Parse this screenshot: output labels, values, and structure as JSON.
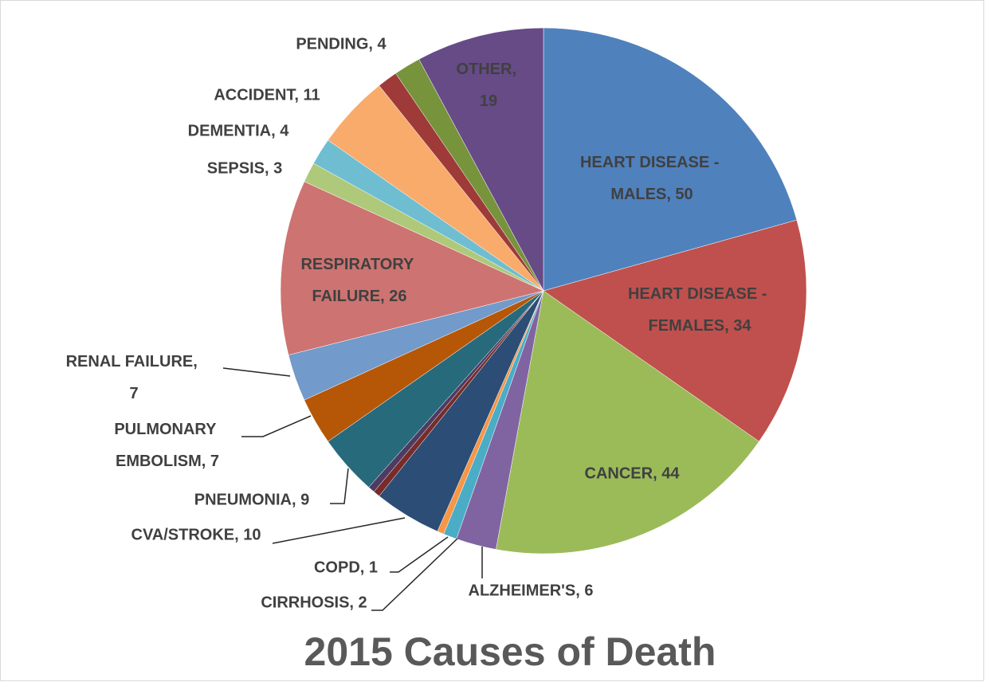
{
  "chart_data": {
    "type": "pie",
    "title": "2015 Causes of Death",
    "values": [
      50,
      34,
      44,
      6,
      2,
      1,
      10,
      1,
      1,
      9,
      7,
      7,
      26,
      3,
      4,
      11,
      3,
      4,
      19
    ],
    "value_labels": [
      "HEART DISEASE - MALES, 50",
      "HEART DISEASE - FEMALES, 34",
      "CANCER, 44",
      "ALZHEIMER'S, 6",
      "CIRRHOSIS, 2",
      "COPD, 1",
      "CVA/STROKE, 10",
      null,
      null,
      "PNEUMONIA, 9",
      "PULMONARY EMBOLISM, 7",
      "RENAL FAILURE, 7",
      "RESPIRATORY FAILURE, 26",
      "SEPSIS, 3",
      "DEMENTIA, 4",
      "ACCIDENT, 11",
      null,
      "PENDING, 4",
      "OTHER, 19"
    ],
    "colors": [
      "#4f81bd",
      "#c0504d",
      "#9bbb59",
      "#8064a2",
      "#4bacc6",
      "#f79646",
      "#2c4d75",
      "#772c2a",
      "#4d3b62",
      "#276a7c",
      "#b65708",
      "#729aca",
      "#cd7371",
      "#afc97a",
      "#6fbdd1",
      "#f9ab6b",
      "#9e3a38",
      "#77933c",
      "#664b86"
    ]
  }
}
